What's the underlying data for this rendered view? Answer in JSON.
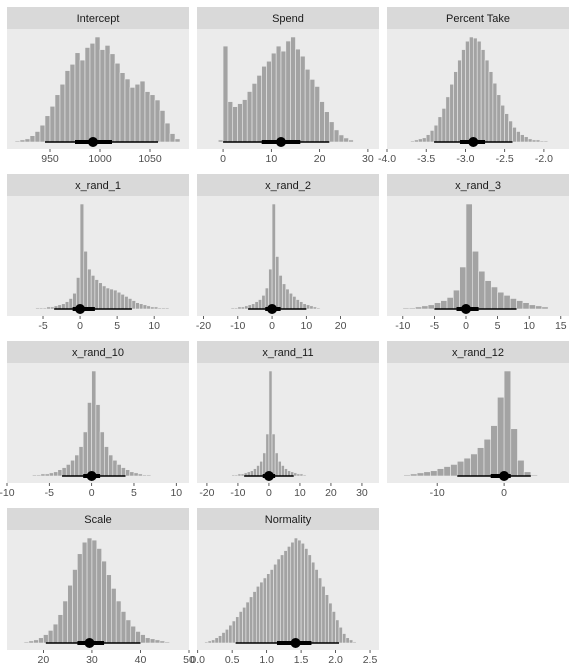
{
  "chart_data": [
    {
      "type": "histogram",
      "title": "Intercept",
      "color": "#a3a3a3",
      "bins": [
        915,
        920,
        925,
        930,
        935,
        940,
        945,
        950,
        955,
        960,
        965,
        970,
        975,
        980,
        985,
        990,
        995,
        1000,
        1005,
        1010,
        1015,
        1020,
        1025,
        1030,
        1035,
        1040,
        1045,
        1050,
        1055,
        1060,
        1065,
        1070,
        1075,
        1080
      ],
      "counts": [
        1,
        2,
        3,
        6,
        10,
        16,
        25,
        34,
        45,
        55,
        68,
        74,
        85,
        78,
        90,
        94,
        100,
        88,
        92,
        84,
        75,
        66,
        60,
        52,
        55,
        58,
        48,
        45,
        40,
        30,
        18,
        8,
        3
      ],
      "median": 993,
      "inner": [
        975,
        1012
      ],
      "outer": [
        945,
        1058
      ],
      "xlim": [
        907,
        1089
      ],
      "xticks": [
        950,
        1000,
        1050
      ]
    },
    {
      "type": "histogram",
      "title": "Spend",
      "color": "#a3a3a3",
      "bins": [
        -1,
        0,
        1,
        2,
        3,
        4,
        5,
        6,
        7,
        8,
        9,
        10,
        11,
        12,
        13,
        14,
        15,
        16,
        17,
        18,
        19,
        20,
        21,
        22,
        23,
        24,
        25,
        26,
        27
      ],
      "counts": [
        2,
        95,
        40,
        35,
        38,
        42,
        50,
        58,
        66,
        75,
        80,
        88,
        95,
        90,
        100,
        104,
        92,
        85,
        72,
        62,
        55,
        40,
        30,
        20,
        12,
        7,
        4,
        2
      ],
      "median": 12,
      "inner": [
        8,
        16
      ],
      "outer": [
        0,
        22
      ],
      "xlim": [
        -5.4,
        32.3
      ],
      "xticks": [
        0,
        10,
        20,
        30
      ]
    },
    {
      "type": "histogram",
      "title": "Percent Take",
      "color": "#a3a3a3",
      "bins": [
        -3.7,
        -3.65,
        -3.6,
        -3.55,
        -3.5,
        -3.45,
        -3.4,
        -3.35,
        -3.3,
        -3.25,
        -3.2,
        -3.15,
        -3.1,
        -3.05,
        -3.0,
        -2.95,
        -2.9,
        -2.85,
        -2.8,
        -2.75,
        -2.7,
        -2.65,
        -2.6,
        -2.55,
        -2.5,
        -2.45,
        -2.4,
        -2.35,
        -2.3,
        -2.25,
        -2.2,
        -2.15,
        -2.1,
        -2.05,
        -2.0,
        -1.95
      ],
      "counts": [
        1,
        2,
        3,
        4,
        7,
        11,
        16,
        24,
        32,
        43,
        55,
        67,
        78,
        88,
        96,
        100,
        99,
        96,
        88,
        78,
        67,
        56,
        45,
        35,
        27,
        20,
        14,
        10,
        7,
        5,
        3,
        2,
        2,
        1,
        1
      ],
      "median": -2.9,
      "inner": [
        -3.07,
        -2.75
      ],
      "outer": [
        -3.4,
        -2.4
      ],
      "xlim": [
        -4.0,
        -1.68
      ],
      "xticks": [
        {
          "value": -4,
          "label": "-4.0"
        },
        {
          "value": -3.5,
          "label": "-3.5"
        },
        {
          "value": -3,
          "label": "-3.0"
        },
        {
          "value": -2.5,
          "label": "-2.5"
        },
        {
          "value": -2,
          "label": "-2.0"
        }
      ]
    },
    {
      "type": "histogram",
      "title": "x_rand_1",
      "color": "#a3a3a3",
      "bins": [
        -6,
        -5.5,
        -5,
        -4.5,
        -4,
        -3.5,
        -3,
        -2.5,
        -2,
        -1.5,
        -1,
        -0.5,
        0,
        0.5,
        1,
        1.5,
        2,
        2.5,
        3,
        3.5,
        4,
        4.5,
        5,
        5.5,
        6,
        6.5,
        7,
        7.5,
        8,
        8.5,
        9,
        9.5,
        10,
        10.5,
        11,
        11.5,
        12
      ],
      "counts": [
        1,
        1,
        1,
        2,
        2,
        3,
        4,
        5,
        7,
        10,
        15,
        30,
        100,
        55,
        38,
        32,
        28,
        25,
        22,
        20,
        19,
        18,
        16,
        14,
        12,
        10,
        8,
        6,
        5,
        4,
        3,
        2,
        2,
        1,
        1,
        1
      ],
      "median": 0,
      "inner": [
        -1,
        2
      ],
      "outer": [
        -3.5,
        7
      ],
      "xlim": [
        -9.86,
        14.7
      ],
      "xticks": [
        -5,
        0,
        5,
        10
      ]
    },
    {
      "type": "histogram",
      "title": "x_rand_2",
      "color": "#a3a3a3",
      "bins": [
        -12,
        -11,
        -10,
        -9,
        -8,
        -7,
        -6,
        -5,
        -4,
        -3,
        -2,
        -1,
        0,
        1,
        2,
        3,
        4,
        5,
        6,
        7,
        8,
        9,
        10,
        11,
        12,
        13,
        14
      ],
      "counts": [
        1,
        1,
        2,
        2,
        3,
        4,
        5,
        7,
        9,
        13,
        20,
        38,
        100,
        50,
        32,
        24,
        19,
        15,
        12,
        9,
        7,
        5,
        4,
        3,
        2,
        1
      ],
      "median": 0,
      "inner": [
        -2,
        2.5
      ],
      "outer": [
        -7,
        10
      ],
      "xlim": [
        -21.9,
        31.2
      ],
      "xticks": [
        -20,
        -10,
        0,
        10,
        20
      ]
    },
    {
      "type": "histogram",
      "title": "x_rand_3",
      "color": "#a3a3a3",
      "bins": [
        -10,
        -9,
        -8,
        -7,
        -6,
        -5,
        -4,
        -3,
        -2,
        -1,
        0,
        1,
        2,
        3,
        4,
        5,
        6,
        7,
        8,
        9,
        10,
        11,
        12,
        13
      ],
      "counts": [
        1,
        1,
        2,
        3,
        4,
        6,
        8,
        11,
        18,
        40,
        100,
        55,
        36,
        27,
        21,
        16,
        13,
        10,
        8,
        6,
        4,
        3,
        2
      ],
      "median": 0,
      "inner": [
        -1.5,
        2
      ],
      "outer": [
        -5,
        8
      ],
      "xlim": [
        -12.5,
        16.3
      ],
      "xticks": [
        -10,
        -5,
        0,
        5,
        10,
        15
      ]
    },
    {
      "type": "histogram",
      "title": "x_rand_10",
      "color": "#a3a3a3",
      "bins": [
        -7,
        -6.5,
        -6,
        -5.5,
        -5,
        -4.5,
        -4,
        -3.5,
        -3,
        -2.5,
        -2,
        -1.5,
        -1,
        -0.5,
        0,
        0.5,
        1,
        1.5,
        2,
        2.5,
        3,
        3.5,
        4,
        4.5,
        5,
        5.5,
        6,
        6.5,
        7
      ],
      "counts": [
        1,
        1,
        2,
        2,
        3,
        4,
        6,
        8,
        11,
        15,
        20,
        28,
        42,
        70,
        100,
        68,
        42,
        28,
        20,
        15,
        11,
        8,
        6,
        4,
        3,
        2,
        1,
        1
      ],
      "median": 0,
      "inner": [
        -1,
        1
      ],
      "outer": [
        -3.5,
        4
      ],
      "xlim": [
        -10,
        11.5
      ],
      "xticks": [
        -10,
        -5,
        0,
        5,
        10
      ]
    },
    {
      "type": "histogram",
      "title": "x_rand_11",
      "color": "#a3a3a3",
      "bins": [
        -12,
        -11,
        -10,
        -9,
        -8,
        -7,
        -6,
        -5,
        -4,
        -3,
        -2,
        -1,
        0,
        1,
        2,
        3,
        4,
        5,
        6,
        7,
        8,
        9,
        10,
        11,
        12
      ],
      "counts": [
        1,
        1,
        2,
        2,
        3,
        4,
        5,
        7,
        10,
        14,
        22,
        40,
        100,
        40,
        22,
        14,
        10,
        7,
        5,
        4,
        3,
        2,
        2,
        1
      ],
      "median": 0,
      "inner": [
        -2,
        2
      ],
      "outer": [
        -8,
        8
      ],
      "xlim": [
        -23.2,
        35.5
      ],
      "xticks": [
        -20,
        -10,
        0,
        10,
        20,
        30
      ]
    },
    {
      "type": "histogram",
      "title": "x_rand_12",
      "color": "#a3a3a3",
      "bins": [
        -15,
        -14,
        -13,
        -12,
        -11,
        -10,
        -9,
        -8,
        -7,
        -6,
        -5,
        -4,
        -3,
        -2,
        -1,
        0,
        1,
        2,
        3,
        4,
        5
      ],
      "counts": [
        1,
        2,
        3,
        4,
        5,
        7,
        9,
        11,
        14,
        17,
        21,
        27,
        35,
        48,
        75,
        100,
        45,
        15,
        4,
        1
      ],
      "median": 0,
      "inner": [
        -2,
        1
      ],
      "outer": [
        -7,
        4
      ],
      "xlim": [
        -17.5,
        9.7
      ],
      "xticks": [
        -10,
        0
      ]
    },
    {
      "type": "histogram",
      "title": "Scale",
      "color": "#a3a3a3",
      "bins": [
        16,
        17,
        18,
        19,
        20,
        21,
        22,
        23,
        24,
        25,
        26,
        27,
        28,
        29,
        30,
        31,
        32,
        33,
        34,
        35,
        36,
        37,
        38,
        39,
        40,
        41,
        42,
        43,
        44,
        45,
        46
      ],
      "counts": [
        1,
        2,
        3,
        5,
        8,
        12,
        18,
        27,
        40,
        55,
        70,
        85,
        96,
        100,
        98,
        90,
        78,
        65,
        52,
        40,
        30,
        22,
        16,
        11,
        8,
        5,
        4,
        3,
        2,
        1
      ],
      "median": 29.5,
      "inner": [
        27,
        32.5
      ],
      "outer": [
        20.5,
        40
      ],
      "xlim": [
        12.5,
        50
      ],
      "xticks": [
        20,
        30,
        40,
        50
      ]
    },
    {
      "type": "histogram",
      "title": "Normality",
      "color": "#a3a3a3",
      "bins": [
        0.1,
        0.15,
        0.2,
        0.25,
        0.3,
        0.35,
        0.4,
        0.45,
        0.5,
        0.55,
        0.6,
        0.65,
        0.7,
        0.75,
        0.8,
        0.85,
        0.9,
        0.95,
        1.0,
        1.05,
        1.1,
        1.15,
        1.2,
        1.25,
        1.3,
        1.35,
        1.4,
        1.45,
        1.5,
        1.55,
        1.6,
        1.65,
        1.7,
        1.75,
        1.8,
        1.85,
        1.9,
        1.95,
        2.0,
        2.05,
        2.1,
        2.15,
        2.2,
        2.25,
        2.3
      ],
      "counts": [
        1,
        2,
        3,
        5,
        7,
        10,
        13,
        17,
        21,
        25,
        30,
        34,
        39,
        44,
        49,
        54,
        58,
        62,
        66,
        70,
        75,
        80,
        84,
        88,
        92,
        96,
        100,
        98,
        95,
        90,
        84,
        77,
        70,
        62,
        54,
        46,
        38,
        30,
        22,
        15,
        9,
        5,
        3,
        1
      ],
      "median": 1.42,
      "inner": [
        1.15,
        1.65
      ],
      "outer": [
        0.55,
        2.05
      ],
      "xlim": [
        -0.01,
        2.63
      ],
      "xticks": [
        {
          "value": 0,
          "label": "0.0"
        },
        0.5,
        {
          "value": 1,
          "label": "1.0"
        },
        1.5,
        {
          "value": 2,
          "label": "2.0"
        },
        2.5
      ]
    }
  ]
}
